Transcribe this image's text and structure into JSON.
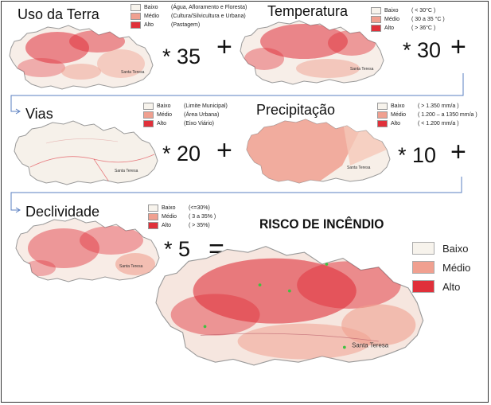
{
  "colors": {
    "baixo": "#f7f3ec",
    "medio": "#f0a090",
    "alto": "#e0303a",
    "arrow": "#5a7fc0"
  },
  "panels": {
    "uso": {
      "title": "Uso da Terra",
      "weight": "* 35",
      "operator": "+",
      "legend": [
        {
          "level": "Baixo",
          "desc": "(Água, Afloramento e Floresta)"
        },
        {
          "level": "Médio",
          "desc": "(Cultura/Silvicultura e Urbana)"
        },
        {
          "level": "Alto",
          "desc": "(Pastagem)"
        }
      ],
      "place_label": "Santa Teresa"
    },
    "temp": {
      "title": "Temperatura",
      "weight": "* 30",
      "operator": "+",
      "legend": [
        {
          "level": "Baixo",
          "desc": "( < 30°C )"
        },
        {
          "level": "Médio",
          "desc": "( 30 a 35 °C )"
        },
        {
          "level": "Alto",
          "desc": "( > 36°C )"
        }
      ],
      "place_label": "Santa Teresa"
    },
    "vias": {
      "title": "Vias",
      "weight": "* 20",
      "operator": "+",
      "legend": [
        {
          "level": "Baixo",
          "desc": "(Limite Municipal)"
        },
        {
          "level": "Médio",
          "desc": "(Área Urbana)"
        },
        {
          "level": "Alto",
          "desc": "(Eixo Viário)"
        }
      ],
      "place_label": "Santa Teresa"
    },
    "prec": {
      "title": "Precipitação",
      "weight": "* 10",
      "operator": "+",
      "legend": [
        {
          "level": "Baixo",
          "desc": "( > 1.350 mm/a )"
        },
        {
          "level": "Médio",
          "desc": "( 1.200 – a 1350 mm/a )"
        },
        {
          "level": "Alto",
          "desc": "( < 1.200 mm/a )"
        }
      ],
      "place_label": "Santa Teresa"
    },
    "decl": {
      "title": "Declividade",
      "weight": "* 5",
      "operator": "=",
      "legend": [
        {
          "level": "Baixo",
          "desc": "(<=30%)"
        },
        {
          "level": "Médio",
          "desc": "( 3 a 35% )"
        },
        {
          "level": "Alto",
          "desc": "( > 35%)"
        }
      ],
      "place_label": "Santa Teresa"
    }
  },
  "result": {
    "title": "RISCO DE INCÊNDIO",
    "legend": [
      "Baixo",
      "Médio",
      "Alto"
    ],
    "place_label": "Santa Teresa"
  }
}
